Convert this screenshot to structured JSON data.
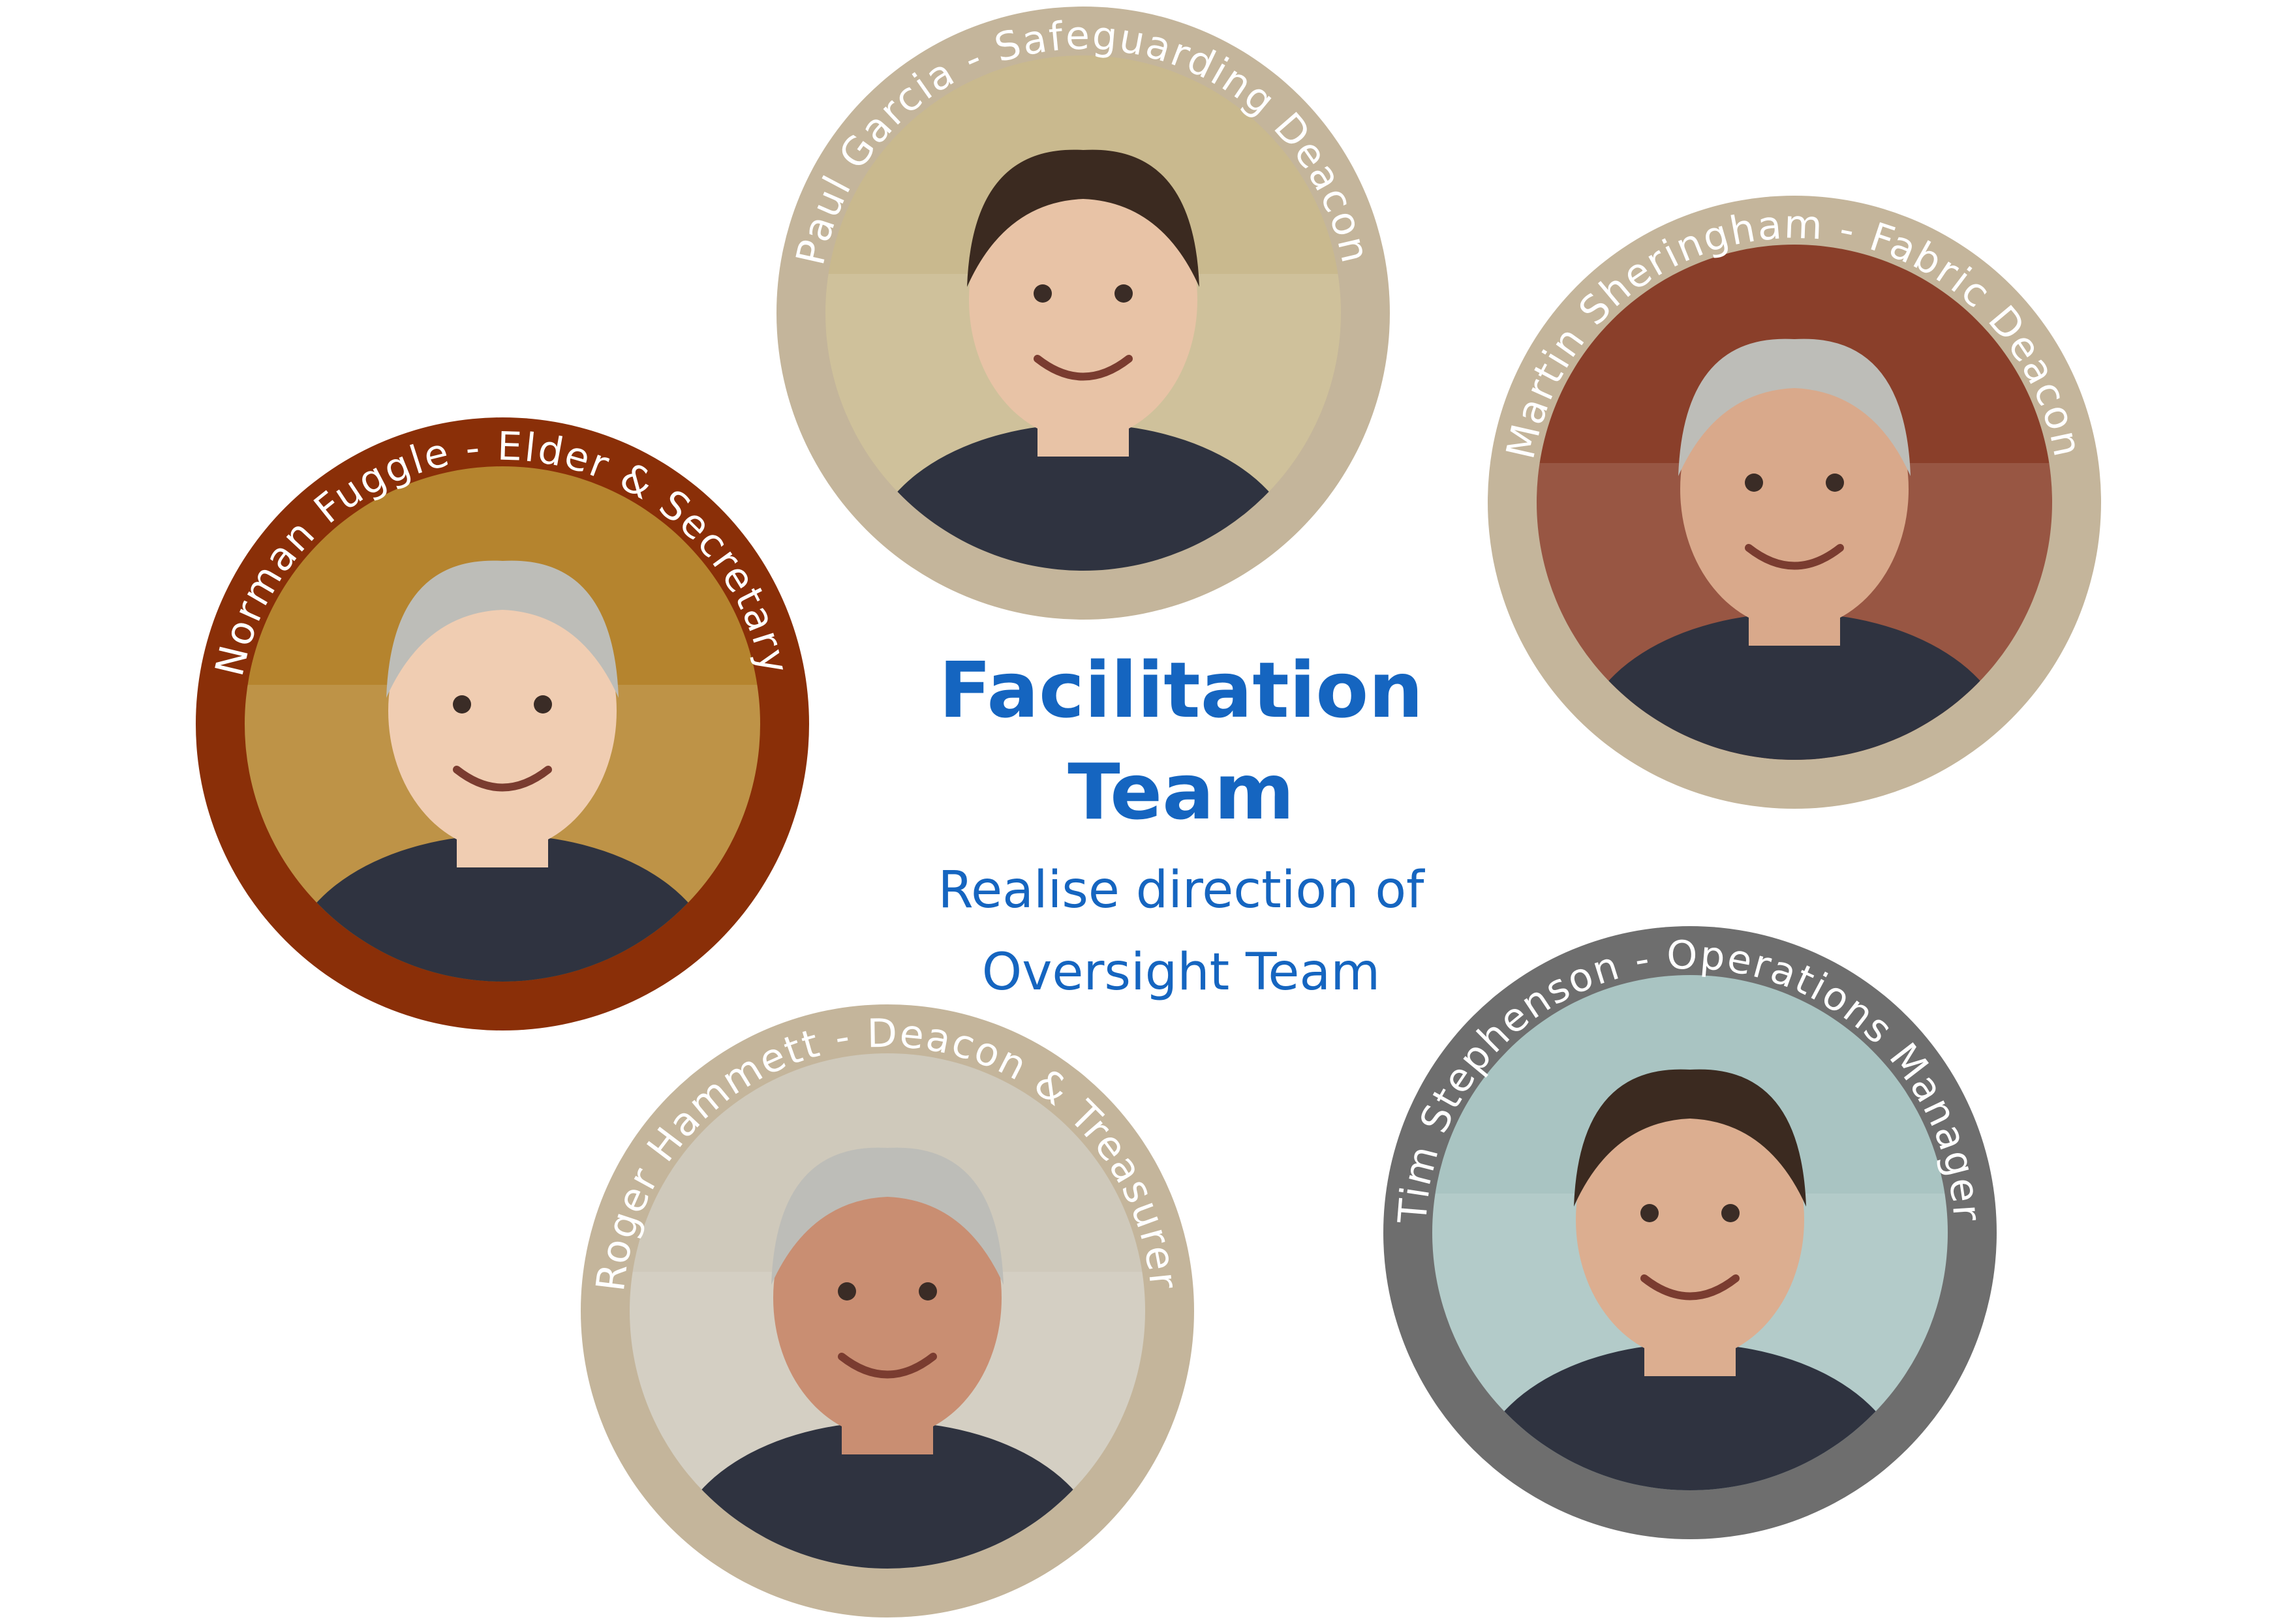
{
  "title_line1": "Facilitation",
  "title_line2": "Team",
  "subtitle_line1": "Realise direction of",
  "subtitle_line2": "Oversight Team",
  "title_color": "#1565c0",
  "members": [
    {
      "caption": "Paul Garcia - Safeguarding Deacon",
      "ring_color": "#c4b59b",
      "icon": "portrait-photo-icon"
    },
    {
      "caption": "Martin Sheringham - Fabric Deacon",
      "ring_color": "#c4b59b",
      "icon": "portrait-photo-icon"
    },
    {
      "caption": "Norman Fuggle - Elder & Secretary",
      "ring_color": "#8a2f08",
      "icon": "portrait-photo-icon"
    },
    {
      "caption": "Roger Hammett - Deacon & Treasurer",
      "ring_color": "#c4b59b",
      "icon": "portrait-photo-icon"
    },
    {
      "caption": "Tim Stephenson - Operations Manager",
      "ring_color": "#6e6e6e",
      "icon": "portrait-photo-icon"
    }
  ]
}
